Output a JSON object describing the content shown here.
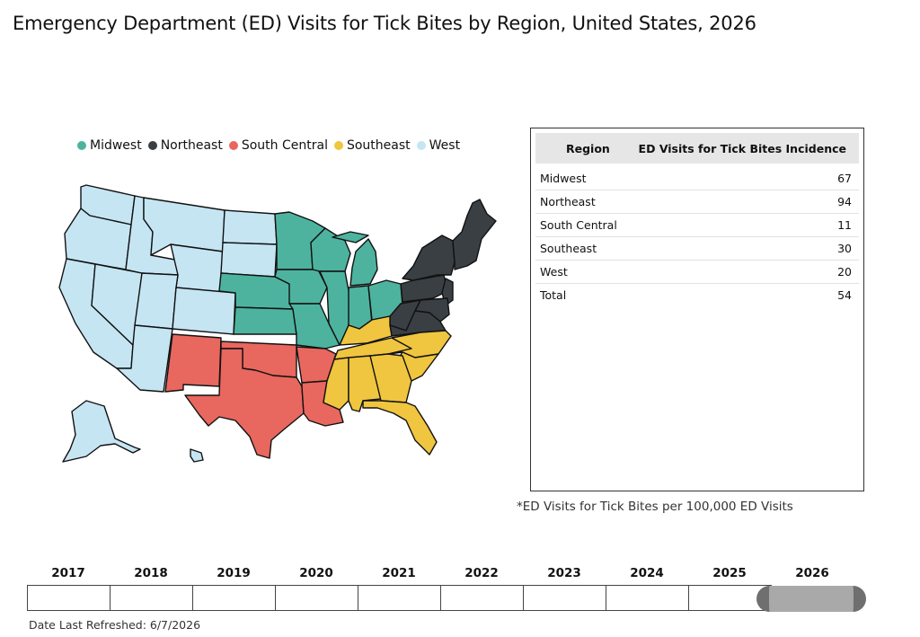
{
  "title": "Emergency Department (ED) Visits for Tick Bites by Region, United States, 2026",
  "legend": [
    {
      "label": "Midwest",
      "color": "#4db39f"
    },
    {
      "label": "Northeast",
      "color": "#3a3f44"
    },
    {
      "label": "South Central",
      "color": "#e8675f"
    },
    {
      "label": "Southeast",
      "color": "#f0c53f"
    },
    {
      "label": "West",
      "color": "#c5e5f3"
    }
  ],
  "table": {
    "col_region": "Region",
    "col_value": "ED Visits for Tick Bites Incidence",
    "rows": [
      {
        "region": "Midwest",
        "value": "67"
      },
      {
        "region": "Northeast",
        "value": "94"
      },
      {
        "region": "South Central",
        "value": "11"
      },
      {
        "region": "Southeast",
        "value": "30"
      },
      {
        "region": "West",
        "value": "20"
      },
      {
        "region": "Total",
        "value": "54"
      }
    ]
  },
  "footnote": "*ED Visits for Tick Bites per 100,000 ED Visits",
  "years": [
    "2017",
    "2018",
    "2019",
    "2020",
    "2021",
    "2022",
    "2023",
    "2024",
    "2025",
    "2026"
  ],
  "selected_year": "2026",
  "refreshed": "Date Last Refreshed: 6/7/2026"
}
